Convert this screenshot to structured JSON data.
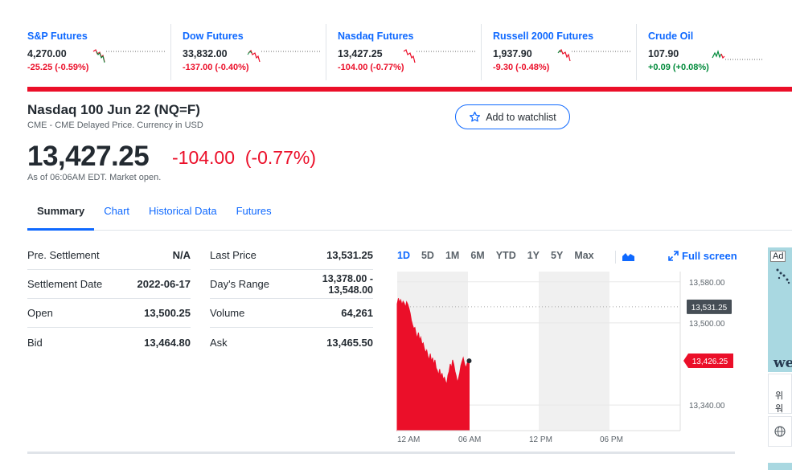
{
  "tickers": [
    {
      "name": "S&P Futures",
      "price": "4,270.00",
      "change": "-25.25 (-0.59%)",
      "direction": "down"
    },
    {
      "name": "Dow Futures",
      "price": "33,832.00",
      "change": "-137.00 (-0.40%)",
      "direction": "down"
    },
    {
      "name": "Nasdaq Futures",
      "price": "13,427.25",
      "change": "-104.00 (-0.77%)",
      "direction": "down"
    },
    {
      "name": "Russell 2000 Futures",
      "price": "1,937.90",
      "change": "-9.30 (-0.48%)",
      "direction": "down"
    },
    {
      "name": "Crude Oil",
      "price": "107.90",
      "change": "+0.09 (+0.08%)",
      "direction": "up"
    }
  ],
  "quote": {
    "title": "Nasdaq 100 Jun 22 (NQ=F)",
    "subtitle": "CME - CME Delayed Price. Currency in USD",
    "price": "13,427.25",
    "change": "-104.00",
    "change_pct": "(-0.77%)",
    "as_of": "As of 06:06AM EDT. Market open.",
    "watchlist_label": "Add to watchlist"
  },
  "tabs": [
    "Summary",
    "Chart",
    "Historical Data",
    "Futures"
  ],
  "summary_left": [
    {
      "label": "Pre. Settlement",
      "value": "N/A"
    },
    {
      "label": "Settlement Date",
      "value": "2022-06-17"
    },
    {
      "label": "Open",
      "value": "13,500.25"
    },
    {
      "label": "Bid",
      "value": "13,464.80"
    }
  ],
  "summary_right": [
    {
      "label": "Last Price",
      "value": "13,531.25"
    },
    {
      "label": "Day's Range",
      "value_line1": "13,378.00 -",
      "value_line2": "13,548.00"
    },
    {
      "label": "Volume",
      "value": "64,261"
    },
    {
      "label": "Ask",
      "value": "13,465.50"
    }
  ],
  "chart_controls": {
    "ranges": [
      "1D",
      "5D",
      "1M",
      "6M",
      "YTD",
      "1Y",
      "5Y",
      "Max"
    ],
    "active_range": "1D",
    "chart_type_icon": "mountain-chart-icon",
    "fullscreen_label": "Full screen",
    "fullscreen_icon": "expand-arrows-icon"
  },
  "chart_data": {
    "type": "area",
    "x_ticks": [
      "12 AM",
      "06 AM",
      "12 PM",
      "06 PM"
    ],
    "y_ticks": [
      13580.0,
      13500.0,
      13340.0
    ],
    "y_tick_labels": [
      "13,580.00",
      "13,500.00",
      "13,340.00"
    ],
    "ylim": [
      13290,
      13600
    ],
    "previous_close": 13531.25,
    "previous_close_label": "13,531.25",
    "current_label": "13,426.25",
    "current": 13426.25,
    "series": [
      {
        "x": [
          0.0,
          0.1,
          0.2,
          0.3,
          0.4,
          0.5,
          0.6,
          0.7,
          0.8,
          0.9,
          1.0,
          1.1,
          1.2,
          1.3,
          1.4,
          1.5,
          1.6,
          1.7,
          1.8,
          1.9,
          2.0,
          2.1,
          2.2,
          2.3,
          2.4,
          2.5,
          2.6,
          2.7,
          2.8,
          2.9,
          3.0,
          3.1,
          3.2,
          3.3,
          3.4,
          3.5,
          3.6,
          3.7,
          3.8,
          3.9,
          4.0,
          4.1,
          4.2,
          4.3,
          4.4,
          4.5,
          4.6,
          4.7,
          4.8,
          4.9,
          5.0,
          5.1,
          5.2,
          5.3,
          5.4,
          5.5,
          5.6,
          5.7,
          5.8,
          5.9,
          6.0,
          6.1
        ],
        "values": [
          13537,
          13548,
          13540,
          13545,
          13535,
          13542,
          13538,
          13530,
          13541,
          13536,
          13528,
          13519,
          13505,
          13496,
          13489,
          13491,
          13478,
          13470,
          13481,
          13466,
          13472,
          13458,
          13461,
          13450,
          13442,
          13447,
          13436,
          13427,
          13440,
          13425,
          13432,
          13418,
          13428,
          13412,
          13407,
          13398,
          13410,
          13395,
          13402,
          13390,
          13394,
          13386,
          13380,
          13398,
          13405,
          13420,
          13412,
          13428,
          13419,
          13405,
          13397,
          13384,
          13392,
          13402,
          13417,
          13425,
          13432,
          13421,
          13412,
          13418,
          13426,
          13426
        ]
      }
    ]
  },
  "ad": {
    "label": "Ad",
    "brand": "we",
    "cta": "위워",
    "globe_icon": "globe-icon"
  }
}
